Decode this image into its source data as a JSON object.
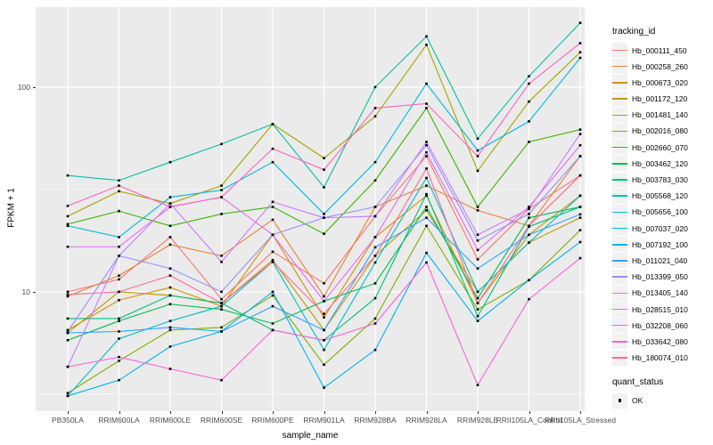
{
  "figure": {
    "y_axis_title": "FPKM + 1",
    "x_axis_title": "sample_name",
    "legend": {
      "tracking_title": "tracking_id",
      "quant_title": "quant_status",
      "quant_items": [
        {
          "label": "OK",
          "key": "black-square"
        }
      ]
    },
    "colors": {
      "panel_bg": "#EBEBEB",
      "grid": "#FFFFFF",
      "tick_text": "#4D4D4D",
      "axis_text": "#000000",
      "point": "#000000",
      "legend_key_bg": "#F2F2F2"
    }
  },
  "chart_data": {
    "type": "line",
    "title": "",
    "xlabel": "sample_name",
    "ylabel": "FPKM + 1",
    "y_scale": "log10",
    "ylim": [
      2.61,
      246
    ],
    "y_ticks": [
      {
        "value": 10,
        "label": "10"
      },
      {
        "value": 100,
        "label": "100"
      }
    ],
    "y_minor": [
      3.162,
      31.62
    ],
    "grid": true,
    "legend_position": "right",
    "point_shape": "filled-black-square",
    "categories": [
      "PB350LA",
      "RRIM600LA",
      "RRIM600LE",
      "RRIM600SE",
      "RRIM600PE",
      "RRIM901LA",
      "RRIM928BA",
      "RRIM928LA",
      "RRIM928LE",
      "RRII105LA_Control",
      "RRII105LA_Stressed"
    ],
    "series": [
      {
        "name": "Hb_000111_450",
        "color": "#F8766D",
        "values": [
          10,
          11.5,
          18.5,
          9.2,
          15.7,
          11,
          23.4,
          46,
          14.4,
          25.4,
          37
        ]
      },
      {
        "name": "Hb_000258_260",
        "color": "#EA8331",
        "values": [
          9.5,
          12,
          17,
          15,
          22.5,
          9.5,
          26,
          33,
          25,
          21,
          46
        ]
      },
      {
        "name": "Hb_000673_020",
        "color": "#D89000",
        "values": [
          6.5,
          9.1,
          10.5,
          8.5,
          19,
          7.5,
          18.5,
          29.5,
          8.8,
          19,
          29.5
        ]
      },
      {
        "name": "Hb_001172_120",
        "color": "#C09B00",
        "values": [
          6.3,
          10,
          9.6,
          8.8,
          14.3,
          6.5,
          15,
          25,
          10,
          17.4,
          23
        ]
      },
      {
        "name": "Hb_001481_140",
        "color": "#A3A500",
        "values": [
          23.4,
          31,
          27,
          33,
          66,
          45,
          72,
          161,
          39,
          85,
          148
        ]
      },
      {
        "name": "Hb_002016_080",
        "color": "#7CAE00",
        "values": [
          3.2,
          4.6,
          6.5,
          6.7,
          9.6,
          4.4,
          7.4,
          21,
          8.2,
          11.4,
          20
        ]
      },
      {
        "name": "Hb_002660_070",
        "color": "#39B600",
        "values": [
          21.4,
          24.8,
          21,
          24,
          26,
          19.2,
          35,
          79,
          26,
          54,
          62
        ]
      },
      {
        "name": "Hb_003462_120",
        "color": "#00BB4E",
        "values": [
          5.8,
          7.2,
          8.7,
          8.2,
          7,
          9,
          11,
          26,
          9.3,
          23,
          26
        ]
      },
      {
        "name": "Hb_003783_030",
        "color": "#00BF7D",
        "values": [
          7.4,
          7.4,
          9.6,
          8.8,
          6.5,
          5.8,
          9.3,
          30,
          7.6,
          20.8,
          26
        ]
      },
      {
        "name": "Hb_005568_120",
        "color": "#00C1A3",
        "values": [
          37,
          35,
          43,
          52.7,
          66,
          32.4,
          100,
          177,
          56,
          113,
          206
        ]
      },
      {
        "name": "Hb_005656_100",
        "color": "#00BFC4",
        "values": [
          3.1,
          5.9,
          7.2,
          8.5,
          14,
          5.2,
          13.9,
          36,
          10,
          17.4,
          29.5
        ]
      },
      {
        "name": "Hb_007037_020",
        "color": "#00BAE0",
        "values": [
          21,
          18.5,
          29,
          31.4,
          43,
          24,
          43,
          104,
          49,
          68,
          139
        ]
      },
      {
        "name": "Hb_007192_100",
        "color": "#00B0F6",
        "values": [
          3.1,
          3.7,
          5.4,
          6.4,
          10,
          3.4,
          5.2,
          15.5,
          7.2,
          11.4,
          17.5
        ]
      },
      {
        "name": "Hb_011021_040",
        "color": "#35A2FF",
        "values": [
          6.3,
          6.4,
          6.7,
          6.4,
          8.5,
          6.5,
          16.5,
          23,
          13,
          19,
          23.9
        ]
      },
      {
        "name": "Hb_013399_050",
        "color": "#9590FF",
        "values": [
          6.4,
          15,
          13,
          10,
          19,
          23,
          26,
          52,
          17.8,
          24,
          46
        ]
      },
      {
        "name": "Hb_013405_140",
        "color": "#C77CFF",
        "values": [
          4.3,
          15,
          27,
          14,
          27.5,
          23,
          23.4,
          54,
          19,
          25.4,
          59
        ]
      },
      {
        "name": "Hb_028515_010",
        "color": "#E76BF3",
        "values": [
          16.6,
          16.6,
          26,
          29,
          19,
          9,
          18.5,
          48,
          16,
          26,
          52
        ]
      },
      {
        "name": "Hb_032208_060",
        "color": "#FA62DB",
        "values": [
          4.3,
          4.8,
          4.2,
          3.7,
          6.5,
          5.8,
          7,
          13.9,
          3.5,
          9.2,
          14.6
        ]
      },
      {
        "name": "Hb_033642_080",
        "color": "#FF62BC",
        "values": [
          26.3,
          33,
          26,
          29,
          50,
          39.5,
          79,
          83,
          46,
          104,
          164
        ]
      },
      {
        "name": "Hb_180074_010",
        "color": "#FF6A98",
        "values": [
          9.7,
          10,
          12,
          8.8,
          14,
          7.8,
          15,
          40,
          8.8,
          21,
          37
        ]
      }
    ]
  }
}
